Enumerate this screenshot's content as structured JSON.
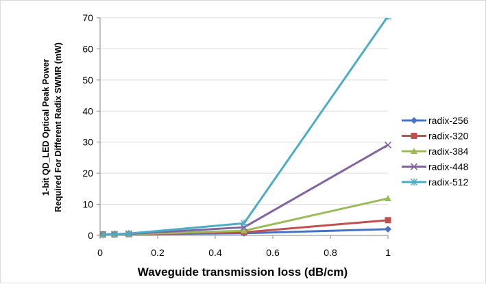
{
  "chart_data": {
    "type": "line",
    "x": [
      0.01,
      0.05,
      0.1,
      0.5,
      1
    ],
    "xlim": [
      0,
      1
    ],
    "ylim": [
      0,
      70
    ],
    "x_ticks": [
      "0",
      "0.2",
      "0.4",
      "0.6",
      "0.8",
      "1"
    ],
    "y_ticks": [
      "0",
      "10",
      "20",
      "30",
      "40",
      "50",
      "60",
      "70"
    ],
    "xlabel": "Waveguide transmission loss (dB/cm)",
    "ylabel_line1": "1-bit QD_LED Optical Peak Power",
    "ylabel_line2": "Required For Different Radix SWMR (mW)",
    "grid": "horizontal",
    "legend_position": "right",
    "series": [
      {
        "name": "radix-256",
        "color": "#4472c4",
        "marker": "diamond",
        "values": [
          0.3,
          0.3,
          0.4,
          0.7,
          2.0
        ]
      },
      {
        "name": "radix-320",
        "color": "#c0504d",
        "marker": "square",
        "values": [
          0.3,
          0.3,
          0.4,
          1.0,
          4.9
        ]
      },
      {
        "name": "radix-384",
        "color": "#9bbb59",
        "marker": "triangle",
        "values": [
          0.3,
          0.3,
          0.4,
          1.5,
          11.9
        ]
      },
      {
        "name": "radix-448",
        "color": "#8064a2",
        "marker": "x",
        "values": [
          0.3,
          0.4,
          0.5,
          2.6,
          29.1
        ]
      },
      {
        "name": "radix-512",
        "color": "#4bacc6",
        "marker": "asterisk",
        "values": [
          0.3,
          0.4,
          0.6,
          3.9,
          70.5
        ]
      }
    ]
  }
}
